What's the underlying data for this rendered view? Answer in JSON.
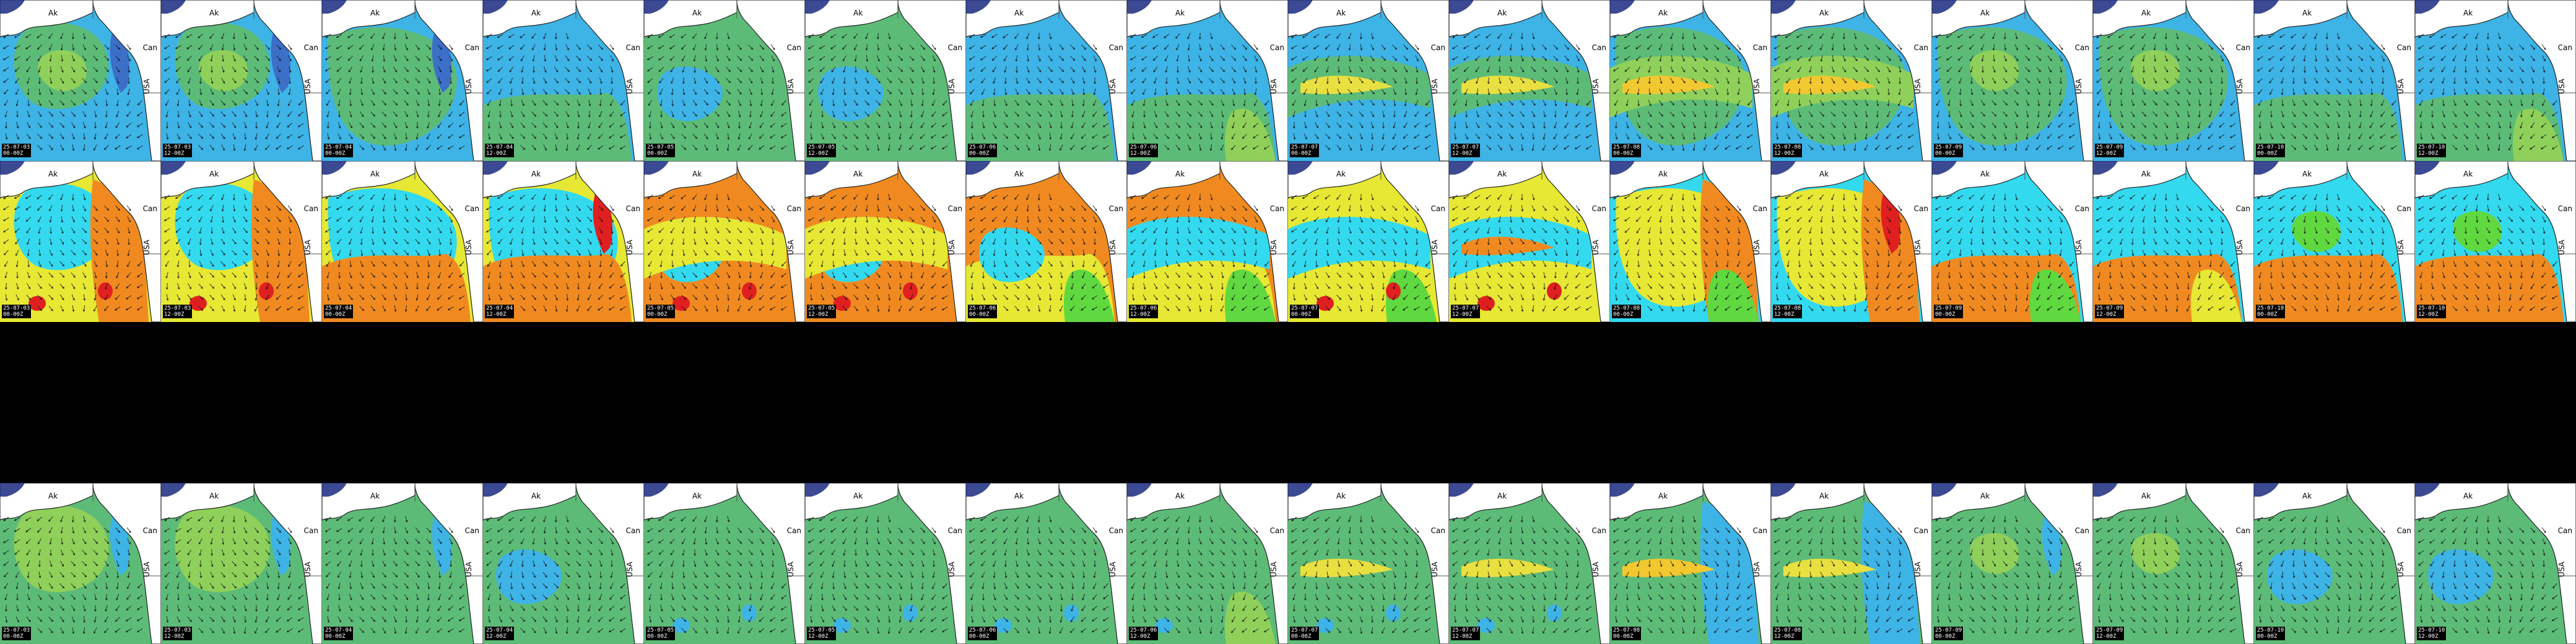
{
  "map": {
    "place_labels": {
      "alaska": "Ak",
      "canada": "Can",
      "usa": "USA"
    },
    "colors": {
      "land": "#ffffff",
      "coast": "#222222",
      "border": "#555555",
      "arrow": "#111111"
    },
    "rows": [
      {
        "name": "wave-height-row",
        "tiles": [
          {
            "date": "25-07-03",
            "time": "00-00Z",
            "base": "#3db3e6",
            "blobs": [
              {
                "fill": "#5dbb78",
                "shape": "eye"
              },
              {
                "fill": "#8fd05a",
                "shape": "core"
              },
              {
                "fill": "#3c6fc8",
                "shape": "east"
              }
            ]
          },
          {
            "date": "25-07-03",
            "time": "12-00Z",
            "base": "#3db3e6",
            "blobs": [
              {
                "fill": "#5dbb78",
                "shape": "eye"
              },
              {
                "fill": "#8fd05a",
                "shape": "core"
              },
              {
                "fill": "#3c6fc8",
                "shape": "east"
              }
            ]
          },
          {
            "date": "25-07-04",
            "time": "00-00Z",
            "base": "#3db3e6",
            "blobs": [
              {
                "fill": "#5dbb78",
                "shape": "wide"
              },
              {
                "fill": "#3c6fc8",
                "shape": "east"
              }
            ]
          },
          {
            "date": "25-07-04",
            "time": "12-00Z",
            "base": "#3db3e6",
            "blobs": [
              {
                "fill": "#5dbb78",
                "shape": "south"
              }
            ]
          },
          {
            "date": "25-07-05",
            "time": "00-00Z",
            "base": "#5dbb78",
            "blobs": [
              {
                "fill": "#3db3e6",
                "shape": "patch"
              }
            ]
          },
          {
            "date": "25-07-05",
            "time": "12-00Z",
            "base": "#5dbb78",
            "blobs": [
              {
                "fill": "#3db3e6",
                "shape": "patch"
              }
            ]
          },
          {
            "date": "25-07-06",
            "time": "00-00Z",
            "base": "#3db3e6",
            "blobs": [
              {
                "fill": "#5dbb78",
                "shape": "south"
              }
            ]
          },
          {
            "date": "25-07-06",
            "time": "12-00Z",
            "base": "#3db3e6",
            "blobs": [
              {
                "fill": "#5dbb78",
                "shape": "south"
              },
              {
                "fill": "#8fd05a",
                "shape": "corner"
              }
            ]
          },
          {
            "date": "25-07-07",
            "time": "00-00Z",
            "base": "#3db3e6",
            "blobs": [
              {
                "fill": "#5dbb78",
                "shape": "band"
              },
              {
                "fill": "#e8e040",
                "shape": "streak"
              }
            ]
          },
          {
            "date": "25-07-07",
            "time": "12-00Z",
            "base": "#3db3e6",
            "blobs": [
              {
                "fill": "#5dbb78",
                "shape": "band"
              },
              {
                "fill": "#e8e040",
                "shape": "streak"
              }
            ]
          },
          {
            "date": "25-07-08",
            "time": "00-00Z",
            "base": "#3db3e6",
            "blobs": [
              {
                "fill": "#5dbb78",
                "shape": "wide"
              },
              {
                "fill": "#8fd05a",
                "shape": "band"
              },
              {
                "fill": "#f2c830",
                "shape": "streak"
              }
            ]
          },
          {
            "date": "25-07-08",
            "time": "12-00Z",
            "base": "#3db3e6",
            "blobs": [
              {
                "fill": "#5dbb78",
                "shape": "wide"
              },
              {
                "fill": "#8fd05a",
                "shape": "band"
              },
              {
                "fill": "#f2c830",
                "shape": "streak"
              }
            ]
          },
          {
            "date": "25-07-09",
            "time": "00-00Z",
            "base": "#3db3e6",
            "blobs": [
              {
                "fill": "#5dbb78",
                "shape": "wide"
              },
              {
                "fill": "#8fd05a",
                "shape": "core"
              }
            ]
          },
          {
            "date": "25-07-09",
            "time": "12-00Z",
            "base": "#3db3e6",
            "blobs": [
              {
                "fill": "#5dbb78",
                "shape": "wide"
              },
              {
                "fill": "#8fd05a",
                "shape": "core"
              }
            ]
          },
          {
            "date": "25-07-10",
            "time": "00-00Z",
            "base": "#3db3e6",
            "blobs": [
              {
                "fill": "#5dbb78",
                "shape": "south"
              }
            ]
          },
          {
            "date": "25-07-10",
            "time": "12-00Z",
            "base": "#3db3e6",
            "blobs": [
              {
                "fill": "#5dbb78",
                "shape": "south"
              },
              {
                "fill": "#8fd05a",
                "shape": "corner"
              }
            ]
          }
        ]
      },
      {
        "name": "wave-period-row",
        "tiles": [
          {
            "date": "25-07-03",
            "time": "00-00Z",
            "base": "#e6e833",
            "blobs": [
              {
                "fill": "#33d9ef",
                "shape": "eye"
              },
              {
                "fill": "#f08a20",
                "shape": "eastwide"
              },
              {
                "fill": "#e02020",
                "shape": "dots"
              }
            ]
          },
          {
            "date": "25-07-03",
            "time": "12-00Z",
            "base": "#e6e833",
            "blobs": [
              {
                "fill": "#33d9ef",
                "shape": "eye"
              },
              {
                "fill": "#f08a20",
                "shape": "eastwide"
              },
              {
                "fill": "#e02020",
                "shape": "dots"
              }
            ]
          },
          {
            "date": "25-07-04",
            "time": "00-00Z",
            "base": "#e6e833",
            "blobs": [
              {
                "fill": "#33d9ef",
                "shape": "wide"
              },
              {
                "fill": "#f08a20",
                "shape": "south"
              }
            ]
          },
          {
            "date": "25-07-04",
            "time": "12-00Z",
            "base": "#e6e833",
            "blobs": [
              {
                "fill": "#33d9ef",
                "shape": "wide"
              },
              {
                "fill": "#f08a20",
                "shape": "south"
              },
              {
                "fill": "#e02020",
                "shape": "east"
              }
            ]
          },
          {
            "date": "25-07-05",
            "time": "00-00Z",
            "base": "#f08a20",
            "blobs": [
              {
                "fill": "#33d9ef",
                "shape": "patch"
              },
              {
                "fill": "#e6e833",
                "shape": "band"
              },
              {
                "fill": "#e02020",
                "shape": "dots"
              }
            ]
          },
          {
            "date": "25-07-05",
            "time": "12-00Z",
            "base": "#f08a20",
            "blobs": [
              {
                "fill": "#33d9ef",
                "shape": "patch"
              },
              {
                "fill": "#e6e833",
                "shape": "band"
              },
              {
                "fill": "#e02020",
                "shape": "dots"
              }
            ]
          },
          {
            "date": "25-07-06",
            "time": "00-00Z",
            "base": "#f08a20",
            "blobs": [
              {
                "fill": "#e6e833",
                "shape": "south"
              },
              {
                "fill": "#33d9ef",
                "shape": "patch"
              },
              {
                "fill": "#60d840",
                "shape": "corner"
              }
            ]
          },
          {
            "date": "25-07-06",
            "time": "12-00Z",
            "base": "#f08a20",
            "blobs": [
              {
                "fill": "#e6e833",
                "shape": "south"
              },
              {
                "fill": "#33d9ef",
                "shape": "band"
              },
              {
                "fill": "#60d840",
                "shape": "corner"
              }
            ]
          },
          {
            "date": "25-07-07",
            "time": "00-00Z",
            "base": "#e6e833",
            "blobs": [
              {
                "fill": "#33d9ef",
                "shape": "band"
              },
              {
                "fill": "#60d840",
                "shape": "corner"
              },
              {
                "fill": "#e02020",
                "shape": "dots"
              }
            ]
          },
          {
            "date": "25-07-07",
            "time": "12-00Z",
            "base": "#e6e833",
            "blobs": [
              {
                "fill": "#33d9ef",
                "shape": "band"
              },
              {
                "fill": "#f08a20",
                "shape": "streak"
              },
              {
                "fill": "#e02020",
                "shape": "dots"
              }
            ]
          },
          {
            "date": "25-07-08",
            "time": "00-00Z",
            "base": "#33d9ef",
            "blobs": [
              {
                "fill": "#e6e833",
                "shape": "wide"
              },
              {
                "fill": "#f08a20",
                "shape": "eastwide"
              },
              {
                "fill": "#60d840",
                "shape": "corner"
              }
            ]
          },
          {
            "date": "25-07-08",
            "time": "12-00Z",
            "base": "#33d9ef",
            "blobs": [
              {
                "fill": "#e6e833",
                "shape": "wide"
              },
              {
                "fill": "#f08a20",
                "shape": "eastwide"
              },
              {
                "fill": "#e02020",
                "shape": "east"
              }
            ]
          },
          {
            "date": "25-07-09",
            "time": "00-00Z",
            "base": "#33d9ef",
            "blobs": [
              {
                "fill": "#f08a20",
                "shape": "south"
              },
              {
                "fill": "#60d840",
                "shape": "corner"
              }
            ]
          },
          {
            "date": "25-07-09",
            "time": "12-00Z",
            "base": "#33d9ef",
            "blobs": [
              {
                "fill": "#f08a20",
                "shape": "south"
              },
              {
                "fill": "#e6e833",
                "shape": "corner"
              }
            ]
          },
          {
            "date": "25-07-10",
            "time": "00-00Z",
            "base": "#33d9ef",
            "blobs": [
              {
                "fill": "#60d840",
                "shape": "core"
              },
              {
                "fill": "#f08a20",
                "shape": "south"
              }
            ]
          },
          {
            "date": "25-07-10",
            "time": "12-00Z",
            "base": "#33d9ef",
            "blobs": [
              {
                "fill": "#60d840",
                "shape": "core"
              },
              {
                "fill": "#f08a20",
                "shape": "south"
              }
            ]
          }
        ]
      },
      {
        "name": "swell-height-row",
        "tiles": [
          {
            "date": "25-07-03",
            "time": "00-00Z",
            "base": "#5dbb78",
            "blobs": [
              {
                "fill": "#8fd05a",
                "shape": "eye"
              },
              {
                "fill": "#3db3e6",
                "shape": "east"
              }
            ]
          },
          {
            "date": "25-07-03",
            "time": "12-00Z",
            "base": "#5dbb78",
            "blobs": [
              {
                "fill": "#8fd05a",
                "shape": "eye"
              },
              {
                "fill": "#3db3e6",
                "shape": "east"
              }
            ]
          },
          {
            "date": "25-07-04",
            "time": "00-00Z",
            "base": "#5dbb78",
            "blobs": [
              {
                "fill": "#3db3e6",
                "shape": "east"
              }
            ]
          },
          {
            "date": "25-07-04",
            "time": "12-00Z",
            "base": "#5dbb78",
            "blobs": [
              {
                "fill": "#3db3e6",
                "shape": "patch"
              }
            ]
          },
          {
            "date": "25-07-05",
            "time": "00-00Z",
            "base": "#5dbb78",
            "blobs": [
              {
                "fill": "#3db3e6",
                "shape": "dots"
              }
            ]
          },
          {
            "date": "25-07-05",
            "time": "12-00Z",
            "base": "#5dbb78",
            "blobs": [
              {
                "fill": "#3db3e6",
                "shape": "dots"
              }
            ]
          },
          {
            "date": "25-07-06",
            "time": "00-00Z",
            "base": "#5dbb78",
            "blobs": [
              {
                "fill": "#3db3e6",
                "shape": "dots"
              }
            ]
          },
          {
            "date": "25-07-06",
            "time": "12-00Z",
            "base": "#5dbb78",
            "blobs": [
              {
                "fill": "#3db3e6",
                "shape": "dots"
              },
              {
                "fill": "#8fd05a",
                "shape": "corner"
              }
            ]
          },
          {
            "date": "25-07-07",
            "time": "00-00Z",
            "base": "#5dbb78",
            "blobs": [
              {
                "fill": "#e8e040",
                "shape": "streak"
              },
              {
                "fill": "#3db3e6",
                "shape": "dots"
              }
            ]
          },
          {
            "date": "25-07-07",
            "time": "12-00Z",
            "base": "#5dbb78",
            "blobs": [
              {
                "fill": "#e8e040",
                "shape": "streak"
              },
              {
                "fill": "#3db3e6",
                "shape": "dots"
              }
            ]
          },
          {
            "date": "25-07-08",
            "time": "00-00Z",
            "base": "#5dbb78",
            "blobs": [
              {
                "fill": "#3db3e6",
                "shape": "eastwide"
              },
              {
                "fill": "#f2c830",
                "shape": "streak"
              }
            ]
          },
          {
            "date": "25-07-08",
            "time": "12-00Z",
            "base": "#5dbb78",
            "blobs": [
              {
                "fill": "#3db3e6",
                "shape": "eastwide"
              },
              {
                "fill": "#e8e040",
                "shape": "streak"
              }
            ]
          },
          {
            "date": "25-07-09",
            "time": "00-00Z",
            "base": "#5dbb78",
            "blobs": [
              {
                "fill": "#8fd05a",
                "shape": "core"
              },
              {
                "fill": "#3db3e6",
                "shape": "east"
              }
            ]
          },
          {
            "date": "25-07-09",
            "time": "12-00Z",
            "base": "#5dbb78",
            "blobs": [
              {
                "fill": "#8fd05a",
                "shape": "core"
              }
            ]
          },
          {
            "date": "25-07-10",
            "time": "00-00Z",
            "base": "#5dbb78",
            "blobs": [
              {
                "fill": "#3db3e6",
                "shape": "patch"
              }
            ]
          },
          {
            "date": "25-07-10",
            "time": "12-00Z",
            "base": "#5dbb78",
            "blobs": [
              {
                "fill": "#3db3e6",
                "shape": "patch"
              }
            ]
          }
        ]
      }
    ]
  }
}
